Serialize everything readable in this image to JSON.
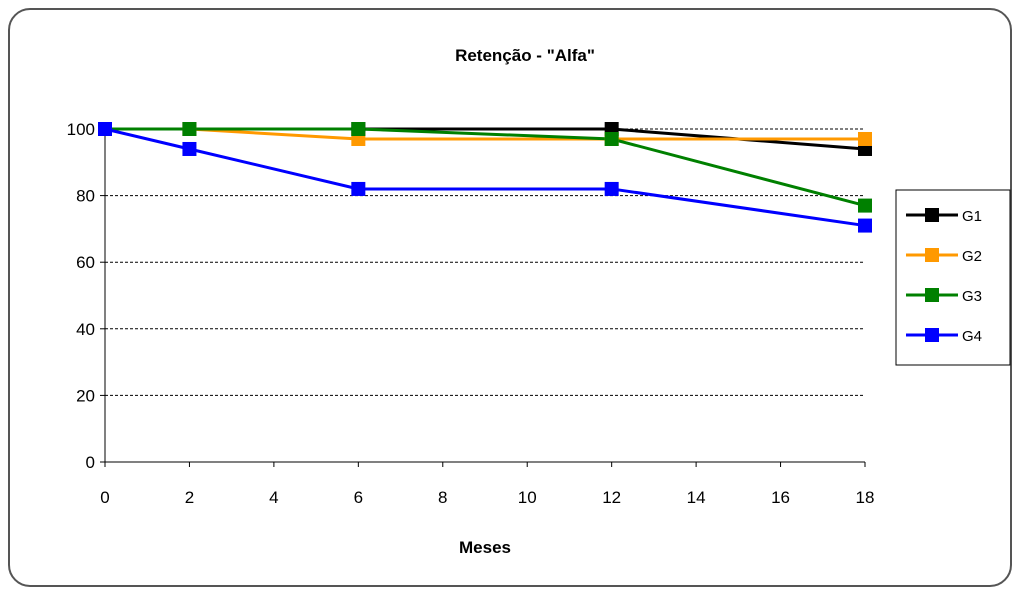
{
  "chart_data": {
    "type": "line",
    "title": "Retenção  - \"Alfa\"",
    "xlabel": "Meses",
    "ylabel": "",
    "xlim": [
      0,
      18
    ],
    "ylim": [
      0,
      100
    ],
    "xticks": [
      0,
      2,
      4,
      6,
      8,
      10,
      12,
      14,
      16,
      18
    ],
    "yticks": [
      0,
      20,
      40,
      60,
      80,
      100
    ],
    "grid": "horizontal dashed",
    "legend_position": "right",
    "series": [
      {
        "name": "G1",
        "color": "#000000",
        "x": [
          0,
          2,
          6,
          12,
          18
        ],
        "y": [
          100,
          100,
          100,
          100,
          94
        ]
      },
      {
        "name": "G2",
        "color": "#FF9900",
        "x": [
          0,
          2,
          6,
          12,
          18
        ],
        "y": [
          100,
          100,
          97,
          97,
          97
        ]
      },
      {
        "name": "G3",
        "color": "#008000",
        "x": [
          0,
          2,
          6,
          12,
          18
        ],
        "y": [
          100,
          100,
          100,
          97,
          77
        ]
      },
      {
        "name": "G4",
        "color": "#0000FF",
        "x": [
          0,
          2,
          6,
          12,
          18
        ],
        "y": [
          100,
          94,
          82,
          82,
          71
        ]
      }
    ]
  }
}
